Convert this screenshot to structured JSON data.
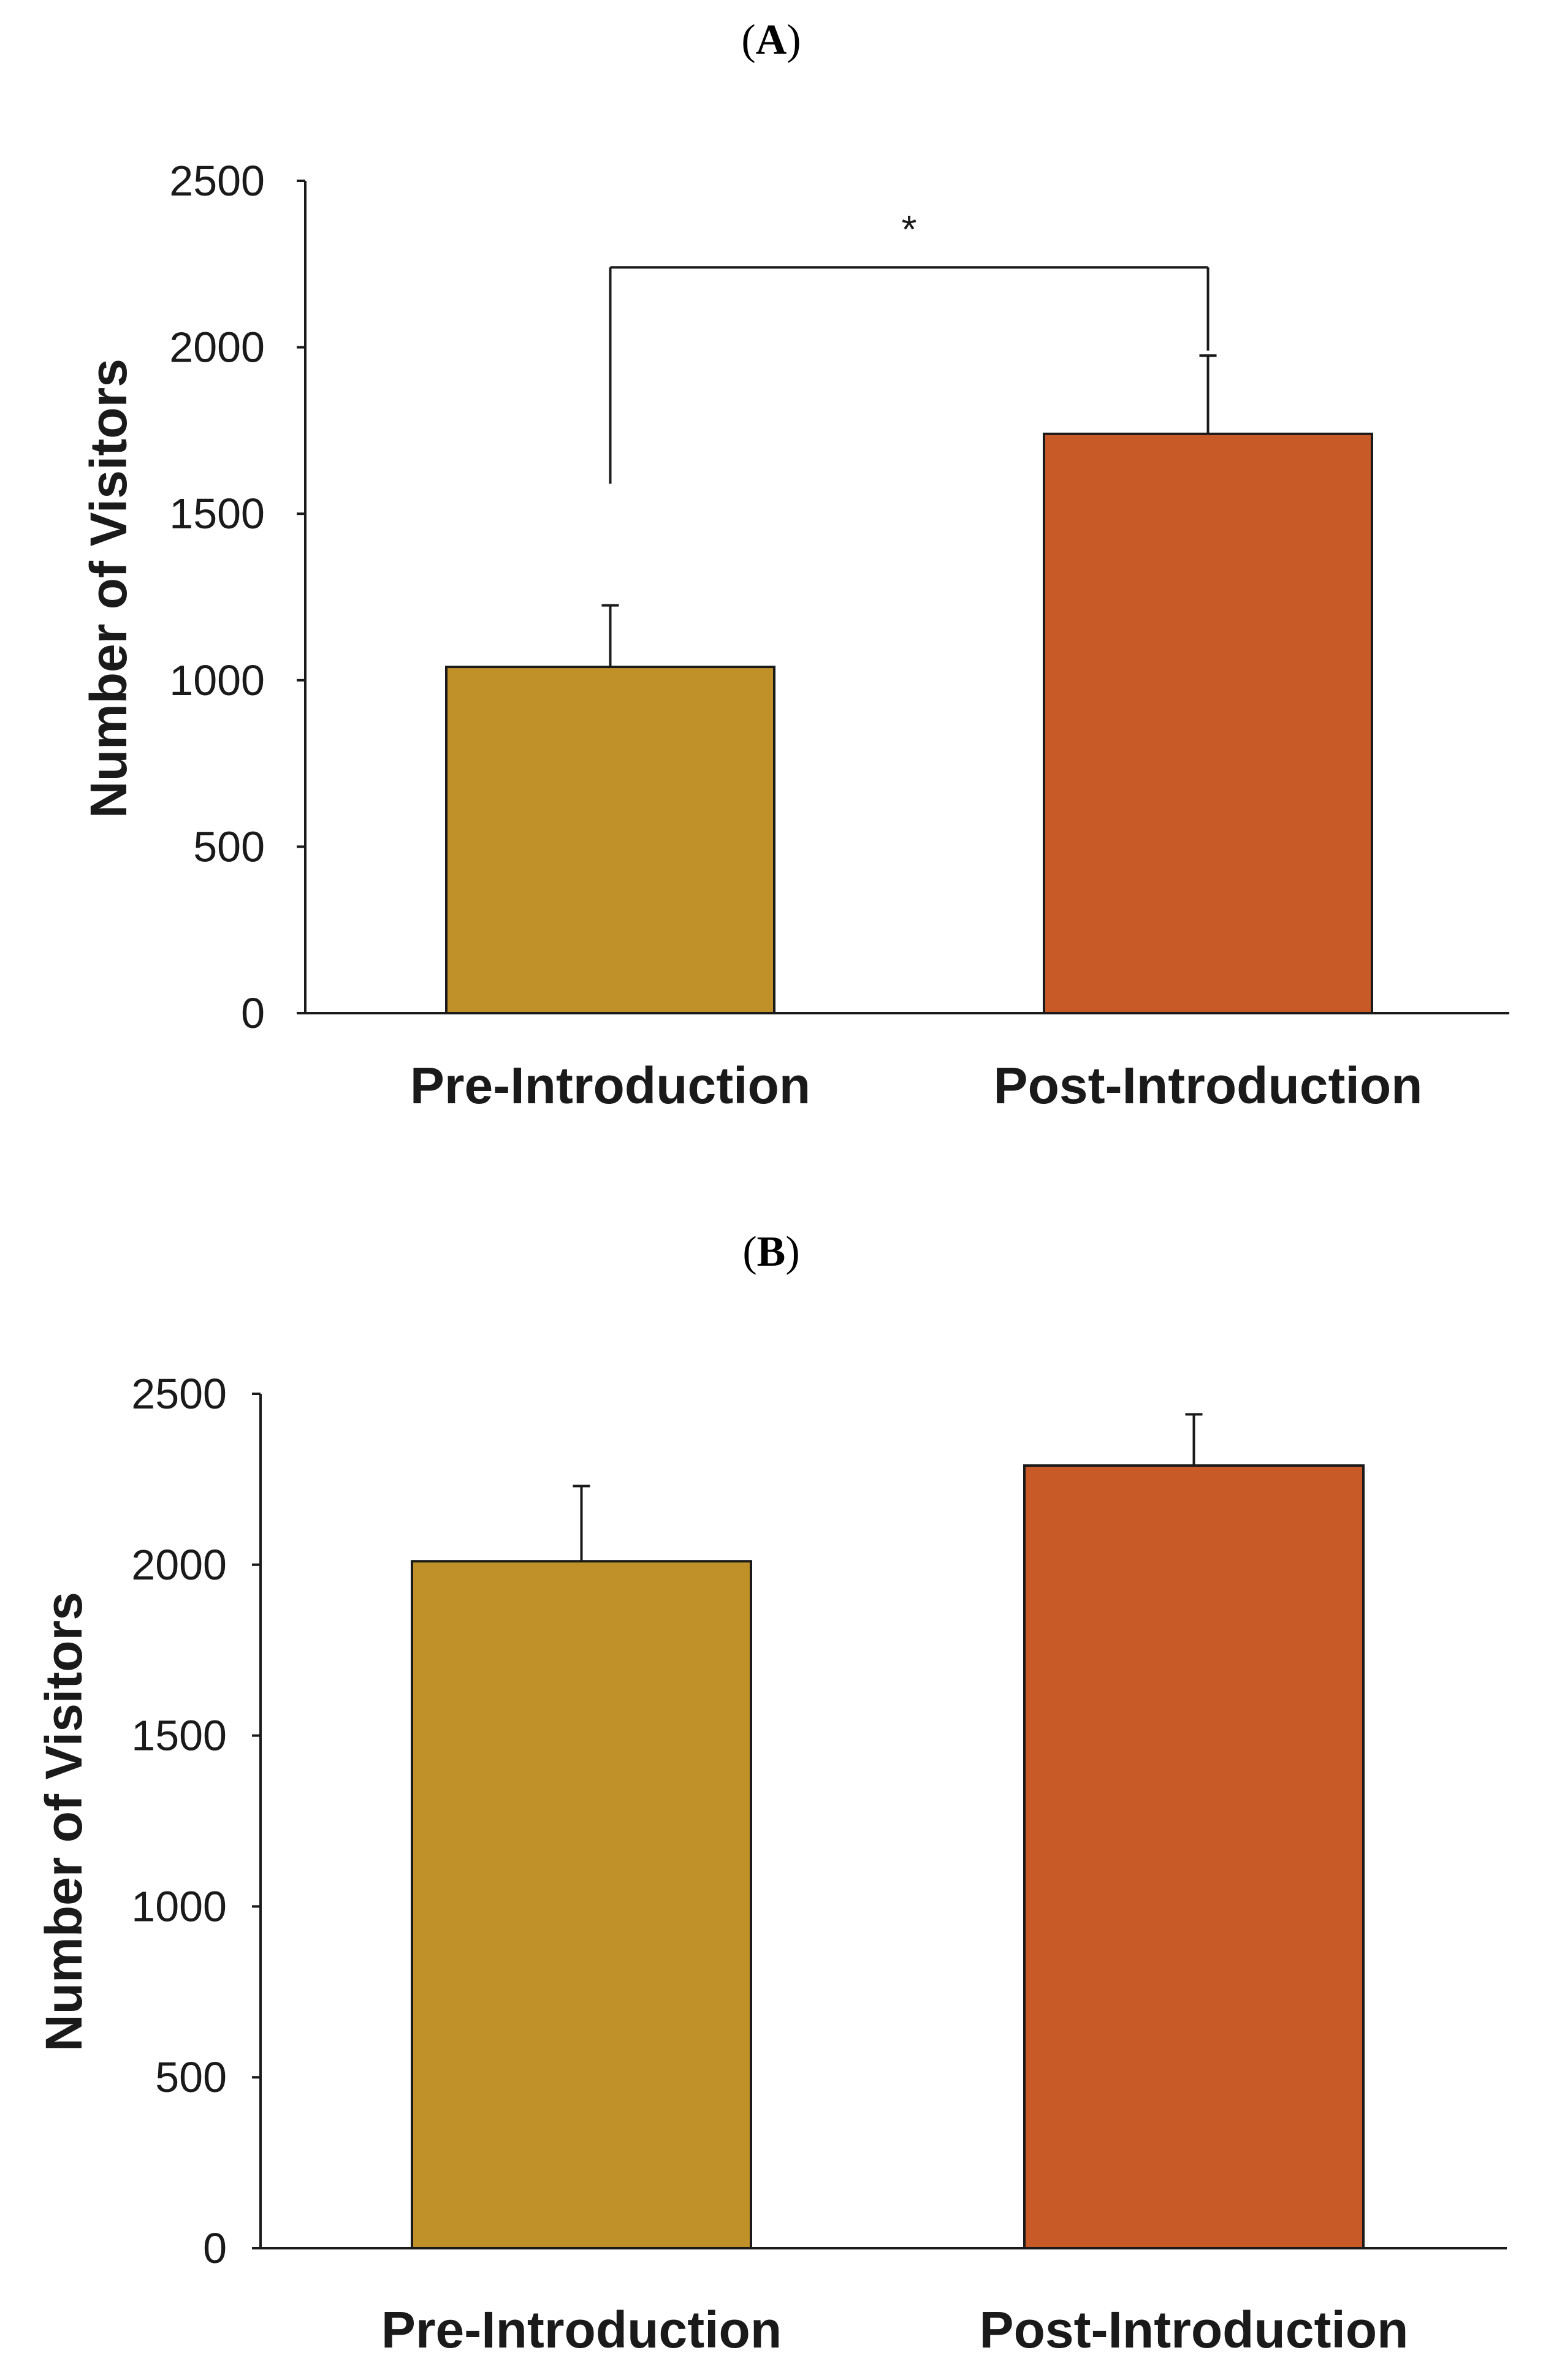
{
  "chart_data": [
    {
      "type": "bar",
      "panel_label": "A",
      "categories": [
        "Pre-Introduction",
        "Post-Introduction"
      ],
      "values": [
        1040,
        1740
      ],
      "error": [
        185,
        235
      ],
      "colors": [
        "#BF9128",
        "#C85A27"
      ],
      "ylabel": "Number of Visitors",
      "xlabel": "",
      "ylim": [
        0,
        2500
      ],
      "yticks": [
        "0",
        "500",
        "1000",
        "1500",
        "2000",
        "2500"
      ],
      "grid": false,
      "significance": {
        "marker": "*",
        "between": [
          0,
          1
        ],
        "left_start_value": 1590,
        "right_start_value": 1990,
        "top_value": 2240
      }
    },
    {
      "type": "bar",
      "panel_label": "B",
      "categories": [
        "Pre-Introduction",
        "Post-Introduction"
      ],
      "values": [
        2010,
        2290
      ],
      "error": [
        220,
        150
      ],
      "colors": [
        "#BF9128",
        "#C85A27"
      ],
      "ylabel": "Number of Visitors",
      "xlabel": "",
      "ylim": [
        0,
        2500
      ],
      "yticks": [
        "0",
        "500",
        "1000",
        "1500",
        "2000",
        "2500"
      ],
      "grid": false
    }
  ]
}
